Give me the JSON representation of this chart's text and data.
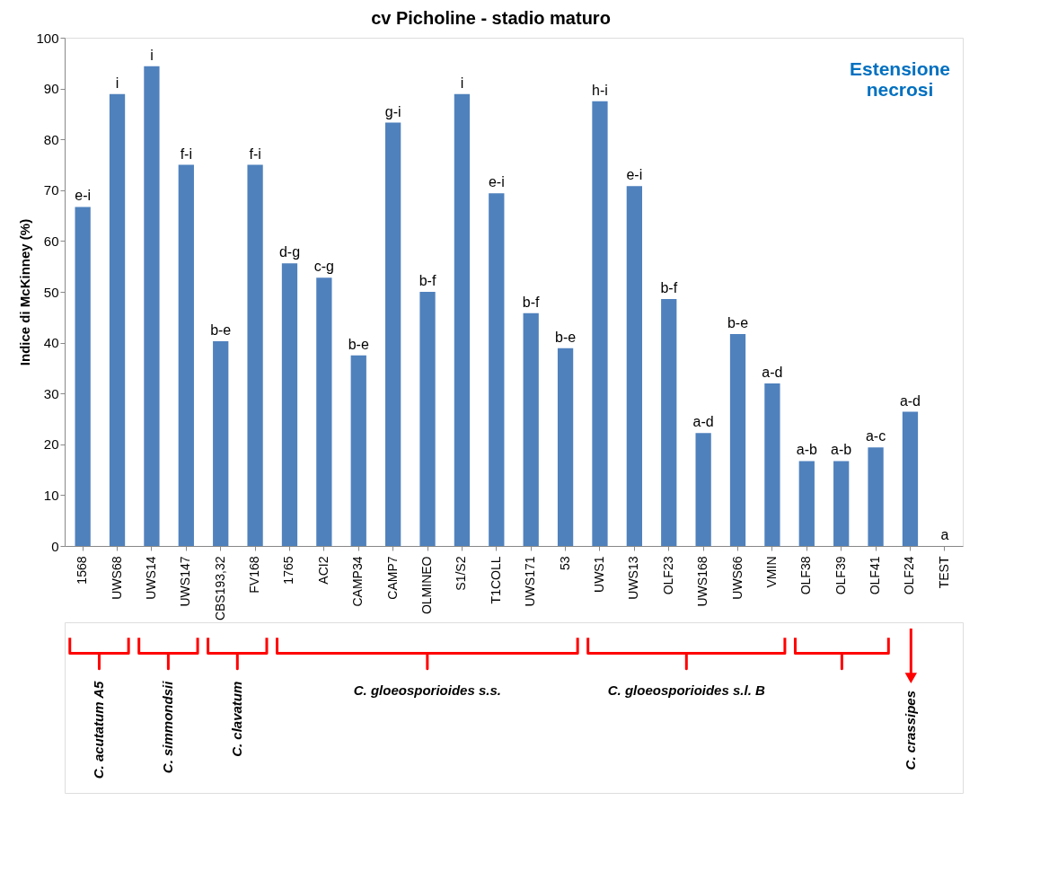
{
  "chart_data": {
    "type": "bar",
    "title": "cv Picholine - stadio maturo",
    "ylabel": "Indice di McKinney (%)",
    "categories": [
      "1568",
      "UWS68",
      "UWS14",
      "UWS147",
      "CBS193,32",
      "FV168",
      "1765",
      "ACI2",
      "CAMP34",
      "CAMP7",
      "OLMINEO",
      "S1/S2",
      "T1COLL",
      "UWS171",
      "53",
      "UWS1",
      "UWS13",
      "OLF23",
      "UWS168",
      "UWS66",
      "VMIN",
      "OLF38",
      "OLF39",
      "OLF41",
      "OLF24",
      "TEST"
    ],
    "values": [
      66.7,
      88.9,
      94.4,
      75,
      40.3,
      75,
      55.6,
      52.8,
      37.5,
      83.3,
      50,
      88.9,
      69.4,
      45.8,
      38.9,
      87.5,
      70.8,
      48.6,
      22.2,
      41.7,
      32,
      16.7,
      16.7,
      19.4,
      26.4,
      0
    ],
    "value_labels": [
      "e-i",
      "i",
      "i",
      "f-i",
      "b-e",
      "f-i",
      "d-g",
      "c-g",
      "b-e",
      "g-i",
      "b-f",
      "i",
      "e-i",
      "b-f",
      "b-e",
      "h-i",
      "e-i",
      "b-f",
      "a-d",
      "b-e",
      "a-d",
      "a-b",
      "a-b",
      "a-c",
      "a-d",
      "a"
    ],
    "color": "#4f81bd",
    "ylim": [
      0,
      100
    ],
    "yticks": [
      0,
      10,
      20,
      30,
      40,
      50,
      60,
      70,
      80,
      90,
      100
    ],
    "grid": false,
    "annotations": [
      "Estensione necrosi",
      "C. acutatum A5",
      "C. simmondsii",
      "C. clavatum",
      "C. gloeosporioides s.s.",
      "C. gloeosporioides s.l. B",
      "C. crassipes"
    ]
  }
}
